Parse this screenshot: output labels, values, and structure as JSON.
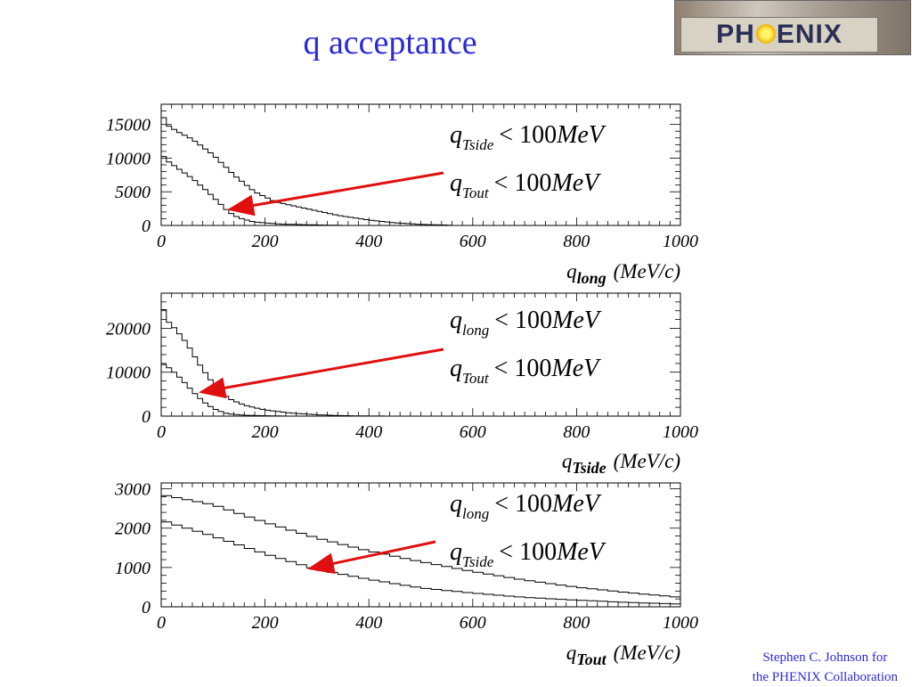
{
  "title": "q acceptance",
  "logo": {
    "left": "PH",
    "right": "ENIX"
  },
  "footer": {
    "line1": "Stephen C. Johnson for",
    "line2": "the PHENIX Collaboration"
  },
  "colors": {
    "title": "#2a2ad6",
    "arrow": "#e01010",
    "histogram": "#000000"
  },
  "chart_data": [
    {
      "type": "line",
      "xlabel": {
        "var": "q",
        "sub": "long",
        "unit": "(MeV/c)"
      },
      "xlim": [
        0,
        1000
      ],
      "ylim": [
        0,
        18000
      ],
      "xticks": [
        "0",
        "200",
        "400",
        "600",
        "800",
        "1000"
      ],
      "yticks": [
        {
          "v": 0,
          "label": "0"
        },
        {
          "v": 5000,
          "label": "5000"
        },
        {
          "v": 10000,
          "label": "10000"
        },
        {
          "v": 15000,
          "label": "15000"
        }
      ],
      "bin_width": 10,
      "series": [
        {
          "points": [
            [
              0,
              17000
            ],
            [
              10,
              15000
            ],
            [
              30,
              14000
            ],
            [
              60,
              12800
            ],
            [
              100,
              10500
            ],
            [
              140,
              7500
            ],
            [
              180,
              5000
            ],
            [
              220,
              3500
            ],
            [
              280,
              2500
            ],
            [
              340,
              1500
            ],
            [
              400,
              800
            ],
            [
              450,
              400
            ],
            [
              500,
              150
            ],
            [
              550,
              50
            ],
            [
              560,
              0
            ]
          ]
        },
        {
          "points": [
            [
              0,
              10800
            ],
            [
              10,
              9700
            ],
            [
              30,
              8600
            ],
            [
              60,
              7000
            ],
            [
              90,
              5000
            ],
            [
              110,
              3500
            ],
            [
              130,
              2000
            ],
            [
              150,
              1100
            ],
            [
              180,
              500
            ],
            [
              230,
              200
            ],
            [
              300,
              80
            ],
            [
              350,
              0
            ]
          ]
        }
      ],
      "annotations": [
        {
          "main": "q",
          "sub": "Tside",
          "rhs": "< 100",
          "unit": "MeV"
        },
        {
          "main": "q",
          "sub": "Tout",
          "rhs": "< 100",
          "unit": "MeV"
        }
      ]
    },
    {
      "type": "line",
      "xlabel": {
        "var": "q",
        "sub": "Tside",
        "unit": "(MeV/c)"
      },
      "xlim": [
        0,
        1000
      ],
      "ylim": [
        0,
        28000
      ],
      "xticks": [
        "0",
        "200",
        "400",
        "600",
        "800",
        "1000"
      ],
      "yticks": [
        {
          "v": 0,
          "label": "0"
        },
        {
          "v": 10000,
          "label": "10000"
        },
        {
          "v": 20000,
          "label": "20000"
        }
      ],
      "bin_width": 10,
      "series": [
        {
          "points": [
            [
              0,
              26500
            ],
            [
              10,
              22000
            ],
            [
              30,
              19500
            ],
            [
              50,
              16500
            ],
            [
              70,
              12500
            ],
            [
              90,
              9000
            ],
            [
              110,
              6000
            ],
            [
              130,
              4000
            ],
            [
              160,
              2500
            ],
            [
              200,
              1400
            ],
            [
              250,
              700
            ],
            [
              300,
              300
            ],
            [
              350,
              100
            ],
            [
              400,
              30
            ],
            [
              450,
              0
            ]
          ]
        },
        {
          "points": [
            [
              0,
              12000
            ],
            [
              10,
              11500
            ],
            [
              30,
              9500
            ],
            [
              50,
              7000
            ],
            [
              70,
              4500
            ],
            [
              90,
              2500
            ],
            [
              110,
              1200
            ],
            [
              130,
              500
            ],
            [
              160,
              200
            ],
            [
              200,
              80
            ],
            [
              250,
              0
            ]
          ]
        }
      ],
      "annotations": [
        {
          "main": "q",
          "sub": "long",
          "rhs": "< 100",
          "unit": "MeV"
        },
        {
          "main": "q",
          "sub": "Tout",
          "rhs": "< 100",
          "unit": "MeV"
        }
      ]
    },
    {
      "type": "line",
      "xlabel": {
        "var": "q",
        "sub": "Tout",
        "unit": "(MeV/c)"
      },
      "xlim": [
        0,
        1000
      ],
      "ylim": [
        0,
        3150
      ],
      "xticks": [
        "0",
        "200",
        "400",
        "600",
        "800",
        "1000"
      ],
      "yticks": [
        {
          "v": 0,
          "label": "0"
        },
        {
          "v": 1000,
          "label": "1000"
        },
        {
          "v": 2000,
          "label": "2000"
        },
        {
          "v": 3000,
          "label": "3000"
        }
      ],
      "bin_width": 20,
      "series": [
        {
          "points": [
            [
              0,
              2850
            ],
            [
              100,
              2600
            ],
            [
              200,
              2150
            ],
            [
              300,
              1750
            ],
            [
              400,
              1420
            ],
            [
              500,
              1150
            ],
            [
              600,
              900
            ],
            [
              700,
              680
            ],
            [
              800,
              500
            ],
            [
              900,
              360
            ],
            [
              1000,
              240
            ]
          ]
        },
        {
          "points": [
            [
              0,
              2200
            ],
            [
              100,
              1800
            ],
            [
              200,
              1350
            ],
            [
              300,
              950
            ],
            [
              400,
              700
            ],
            [
              500,
              480
            ],
            [
              600,
              350
            ],
            [
              700,
              240
            ],
            [
              800,
              170
            ],
            [
              900,
              110
            ],
            [
              1000,
              70
            ]
          ]
        }
      ],
      "annotations": [
        {
          "main": "q",
          "sub": "long",
          "rhs": "< 100",
          "unit": "MeV"
        },
        {
          "main": "q",
          "sub": "Tside",
          "rhs": "< 100",
          "unit": "MeV"
        }
      ]
    }
  ]
}
